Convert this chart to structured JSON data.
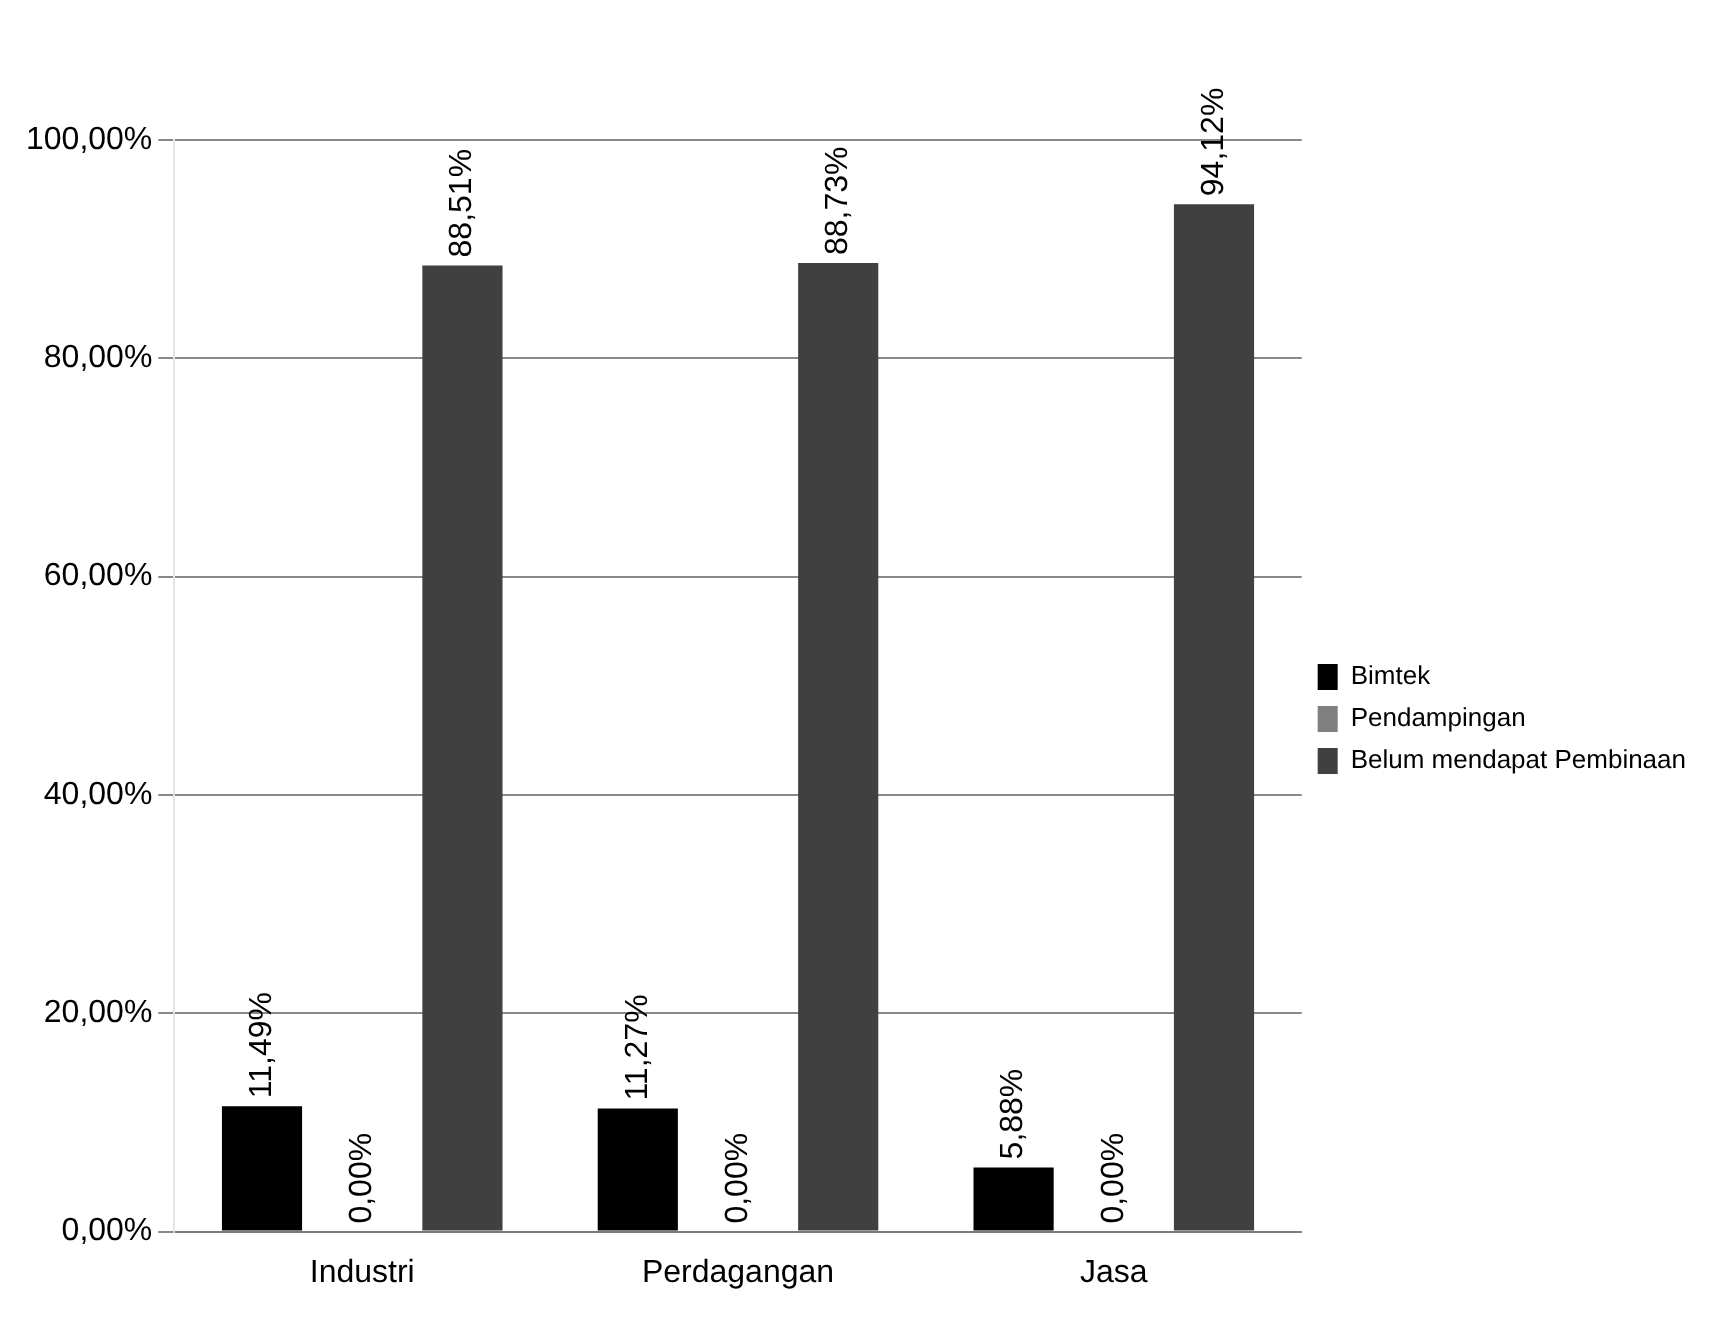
{
  "chart_data": {
    "type": "bar",
    "categories": [
      "Industri",
      "Perdagangan",
      "Jasa"
    ],
    "series": [
      {
        "name": "Bimtek",
        "color": "#000000",
        "values": [
          11.49,
          11.27,
          5.88
        ],
        "value_labels": [
          "11,49%",
          "11,27%",
          "5,88%"
        ]
      },
      {
        "name": "Pendampingan",
        "color": "#808080",
        "values": [
          0,
          0,
          0
        ],
        "value_labels": [
          "0,00%",
          "0,00%",
          "0,00%"
        ]
      },
      {
        "name": "Belum mendapat Pembinaan",
        "color": "#404040",
        "values": [
          88.51,
          88.73,
          94.12
        ],
        "value_labels": [
          "88,51%",
          "88,73%",
          "94,12%"
        ]
      }
    ],
    "ylim": [
      0,
      100
    ],
    "yticks": [
      {
        "value": 0,
        "label": "0,00%"
      },
      {
        "value": 20,
        "label": "20,00%"
      },
      {
        "value": 40,
        "label": "40,00%"
      },
      {
        "value": 60,
        "label": "60,00%"
      },
      {
        "value": 80,
        "label": "80,00%"
      },
      {
        "value": 100,
        "label": "100,00%"
      }
    ],
    "grid": "y",
    "legend": "right"
  }
}
